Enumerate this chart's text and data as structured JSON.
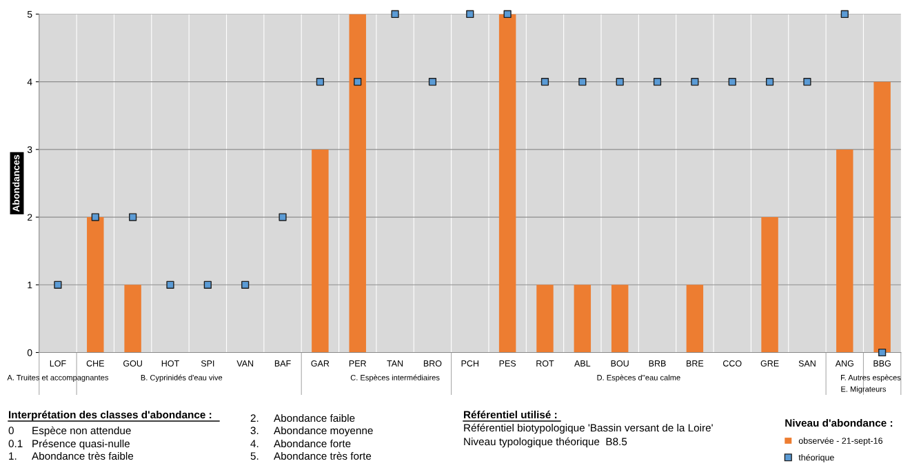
{
  "chart_data": {
    "type": "bar",
    "ylabel": "Abondances",
    "categories": [
      "LOF",
      "CHE",
      "GOU",
      "HOT",
      "SPI",
      "VAN",
      "BAF",
      "GAR",
      "PER",
      "TAN",
      "BRO",
      "PCH",
      "PES",
      "ROT",
      "ABL",
      "BOU",
      "BRB",
      "BRE",
      "CCO",
      "GRE",
      "SAN",
      "ANG",
      "BBG"
    ],
    "series": [
      {
        "name": "observée - 21-sept-16",
        "color": "#ed7d31",
        "values": [
          null,
          2,
          1,
          null,
          null,
          null,
          null,
          3,
          5,
          null,
          null,
          null,
          5,
          1,
          1,
          1,
          null,
          1,
          null,
          2,
          null,
          3,
          4
        ]
      },
      {
        "name": "théorique",
        "type": "scatter",
        "marker": "square",
        "color": "#5b9bd5",
        "values": [
          1,
          2,
          2,
          1,
          1,
          1,
          2,
          4,
          4,
          5,
          4,
          5,
          5,
          4,
          4,
          4,
          4,
          4,
          4,
          4,
          4,
          5,
          0
        ]
      }
    ],
    "ylim": [
      0,
      5
    ],
    "yticks": [
      0,
      1,
      2,
      3,
      4,
      5
    ],
    "grid": true,
    "legend": "bottom right",
    "legend_title": "Niveau d'abondance :",
    "annotations": [
      "A. Truites et accompagnantes",
      "B. Cyprinidés d'eau vive",
      "C. Espèces intermédiaires",
      "D. Espèces d''eau calme",
      "E. Migrateurs",
      "F. Autres espèces",
      "Interprétation des classes d'abondance :",
      "0",
      "Espèce non attendue",
      "0.1",
      "Présence quasi-nulle",
      "1.",
      "Abondance très faible",
      "2.",
      "Abondance faible",
      "3.",
      "Abondance moyenne",
      "4.",
      "Abondance forte",
      "5.",
      "Abondance très forte",
      "Référentiel utilisé :",
      "Référentiel biotypologique 'Bassin versant de la Loire'",
      "Niveau typologique théorique  B8.5"
    ]
  }
}
